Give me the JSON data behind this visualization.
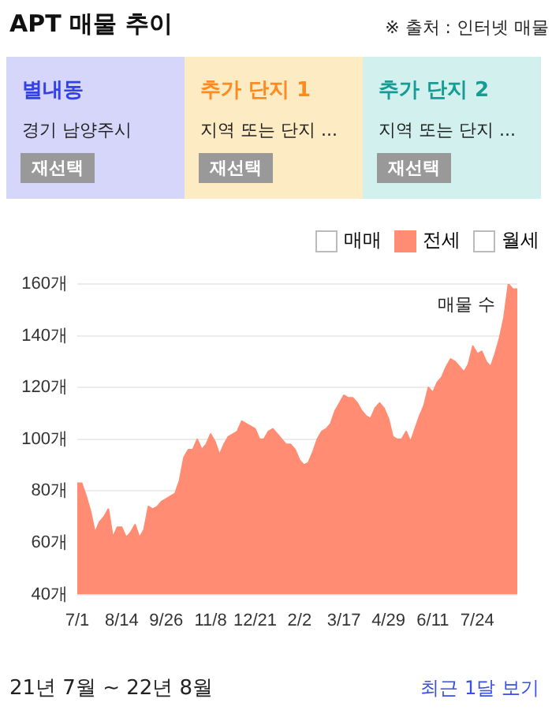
{
  "chart_data": {
    "type": "area",
    "title": "APT 매물 추이",
    "ylabel": "매물 수",
    "annotations": [
      "※ 출처 : 인터넷 매물",
      "별내동",
      "경기 남양주시",
      "재선택",
      "추가 단지 1",
      "지역 또는 단지 ...",
      "재선택",
      "추가 단지 2",
      "지역 또는 단지 ...",
      "재선택",
      "매매",
      "월세",
      "21년 7월 ~ 22년 8월",
      "최근 1달 보기"
    ],
    "categories": [
      "7/1",
      null,
      null,
      null,
      null,
      null,
      null,
      null,
      null,
      null,
      "8/14",
      null,
      null,
      null,
      null,
      null,
      null,
      null,
      null,
      null,
      "9/26",
      null,
      null,
      null,
      null,
      null,
      null,
      null,
      null,
      null,
      "11/8",
      null,
      null,
      null,
      null,
      null,
      null,
      null,
      null,
      null,
      "12/21",
      null,
      null,
      null,
      null,
      null,
      null,
      null,
      null,
      null,
      "2/2",
      null,
      null,
      null,
      null,
      null,
      null,
      null,
      null,
      null,
      "3/17",
      null,
      null,
      null,
      null,
      null,
      null,
      null,
      null,
      null,
      "4/29",
      null,
      null,
      null,
      null,
      null,
      null,
      null,
      null,
      null,
      "6/11",
      null,
      null,
      null,
      null,
      null,
      null,
      null,
      null,
      null,
      "7/24",
      null,
      null,
      null,
      null,
      null,
      null,
      null,
      null,
      null
    ],
    "series": [
      {
        "name": "전세",
        "color": "#ff8c73",
        "values": [
          83,
          83,
          78,
          72,
          64,
          68,
          70,
          73,
          62,
          66,
          66,
          62,
          64,
          67,
          62,
          65,
          74,
          73,
          74,
          76,
          77,
          78,
          79,
          84,
          93,
          96,
          96,
          100,
          96,
          98,
          102,
          99,
          94,
          98,
          101,
          102,
          103,
          107,
          106,
          105,
          104,
          100,
          100,
          103,
          104,
          102,
          100,
          98,
          98,
          96,
          92,
          90,
          91,
          95,
          100,
          103,
          104,
          106,
          111,
          114,
          117,
          116,
          116,
          114,
          111,
          109,
          108,
          112,
          114,
          112,
          108,
          101,
          100,
          100,
          103,
          99,
          104,
          109,
          113,
          120,
          118,
          122,
          124,
          128,
          131,
          130,
          128,
          126,
          129,
          136,
          133,
          134,
          130,
          128,
          133,
          139,
          147,
          160,
          158,
          158
        ]
      }
    ],
    "ylim": [
      40,
      160
    ],
    "yticks": [
      {
        "value": 40,
        "label": "40개"
      },
      {
        "value": 60,
        "label": "60개"
      },
      {
        "value": 80,
        "label": "80개"
      },
      {
        "value": 100,
        "label": "100개"
      },
      {
        "value": 120,
        "label": "120개"
      },
      {
        "value": 140,
        "label": "140개"
      },
      {
        "value": 160,
        "label": "160개"
      }
    ],
    "grid": "y",
    "legend": "top right"
  }
}
